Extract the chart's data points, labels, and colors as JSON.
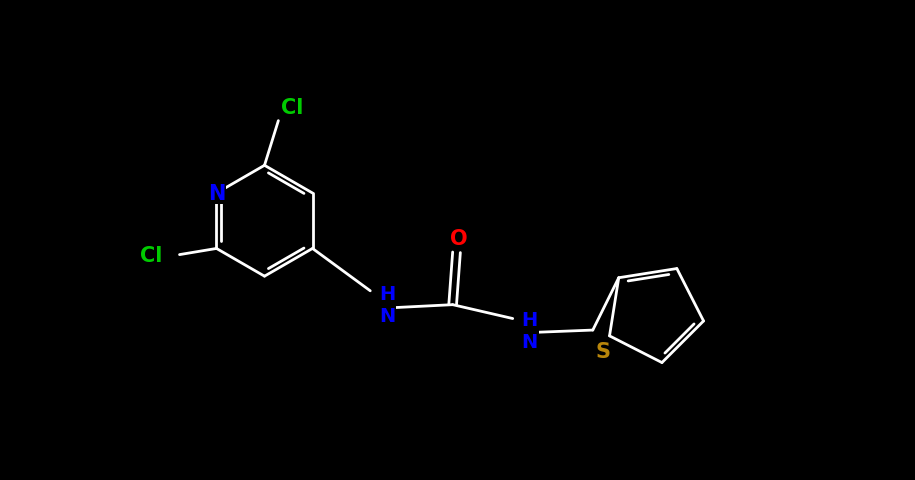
{
  "background_color": "#000000",
  "bond_color": "#ffffff",
  "atom_colors": {
    "N": "#0000ff",
    "O": "#ff0000",
    "Cl": "#00cc00",
    "S": "#b8860b",
    "C": "#ffffff",
    "H": "#0000ff"
  },
  "fig_width": 9.15,
  "fig_height": 4.81,
  "dpi": 100,
  "xlim": [
    0,
    915
  ],
  "ylim": [
    0,
    481
  ],
  "lw": 2.0,
  "fontsize": 15
}
